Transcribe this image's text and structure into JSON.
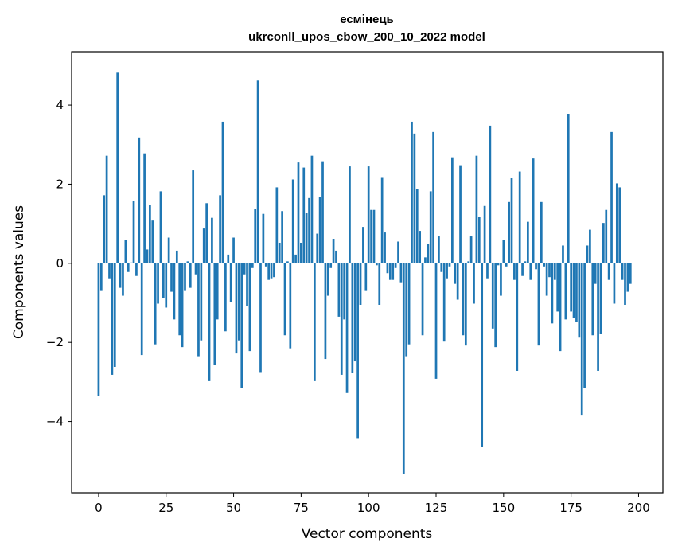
{
  "chart_data": {
    "type": "bar",
    "title_line1": "есмінець",
    "title_line2": "ukrconll_upos_cbow_200_10_2022 model",
    "xlabel": "Vector components",
    "ylabel": "Components values",
    "xlim": [
      -10,
      209
    ],
    "ylim": [
      -5.8,
      5.35
    ],
    "x_ticks": [
      0,
      25,
      50,
      75,
      100,
      125,
      150,
      175,
      200
    ],
    "y_ticks": [
      -4,
      -2,
      0,
      2,
      4
    ],
    "bar_color": "#1f77b4",
    "grid": false,
    "values": [
      -3.35,
      -0.68,
      1.72,
      2.72,
      -0.38,
      -2.82,
      -2.62,
      4.82,
      -0.62,
      -0.82,
      0.58,
      -0.22,
      0.02,
      1.58,
      -0.32,
      3.18,
      -2.32,
      2.78,
      0.35,
      1.48,
      1.08,
      -2.05,
      -1.02,
      1.82,
      -0.88,
      -1.12,
      0.65,
      -0.72,
      -1.42,
      0.32,
      -1.82,
      -2.12,
      -0.68,
      0.05,
      -0.62,
      2.35,
      -0.28,
      -2.35,
      -1.95,
      0.88,
      1.52,
      -2.98,
      1.15,
      -2.58,
      -1.42,
      1.72,
      3.58,
      -1.72,
      0.22,
      -0.98,
      0.65,
      -2.28,
      -1.95,
      -3.15,
      -0.28,
      -1.08,
      -2.22,
      -0.12,
      1.38,
      4.62,
      -2.75,
      1.25,
      -0.08,
      -0.42,
      -0.38,
      -0.35,
      1.92,
      0.52,
      1.32,
      -1.82,
      0.05,
      -2.15,
      2.12,
      0.22,
      2.55,
      0.52,
      2.42,
      1.28,
      1.65,
      2.72,
      -2.98,
      0.75,
      1.68,
      2.58,
      -2.42,
      -0.82,
      -0.12,
      0.62,
      0.32,
      -1.35,
      -2.82,
      -1.42,
      -3.28,
      2.45,
      -2.78,
      -2.48,
      -4.42,
      -1.05,
      0.92,
      -0.68,
      2.45,
      1.35,
      1.35,
      -0.05,
      -1.05,
      2.18,
      0.78,
      -0.25,
      -0.42,
      -0.42,
      -0.12,
      0.55,
      -0.48,
      -5.32,
      -2.35,
      -2.05,
      3.58,
      3.28,
      1.88,
      0.82,
      -1.82,
      0.15,
      0.48,
      1.82,
      3.32,
      -2.92,
      0.68,
      -0.22,
      -1.98,
      -0.38,
      -0.08,
      2.68,
      -0.52,
      -0.92,
      2.48,
      -1.82,
      -2.08,
      0.05,
      0.68,
      -1.02,
      2.72,
      1.18,
      -4.65,
      1.45,
      -0.38,
      3.48,
      -1.65,
      -2.12,
      -0.05,
      -0.82,
      0.58,
      -0.08,
      1.55,
      2.15,
      -0.42,
      -2.72,
      2.32,
      -0.32,
      0.05,
      1.05,
      -0.42,
      2.65,
      -0.15,
      -2.08,
      1.55,
      -0.08,
      -0.82,
      -0.35,
      -1.52,
      -0.42,
      -1.22,
      -2.22,
      0.45,
      -1.42,
      3.78,
      -1.22,
      -1.38,
      -1.48,
      -1.88,
      -3.85,
      -3.15,
      0.45,
      0.85,
      -1.82,
      -0.52,
      -2.72,
      -1.78,
      1.02,
      1.35,
      -0.42,
      3.32,
      -1.02,
      2.02,
      1.92,
      -0.42,
      -1.05,
      -0.72,
      -0.52
    ]
  }
}
